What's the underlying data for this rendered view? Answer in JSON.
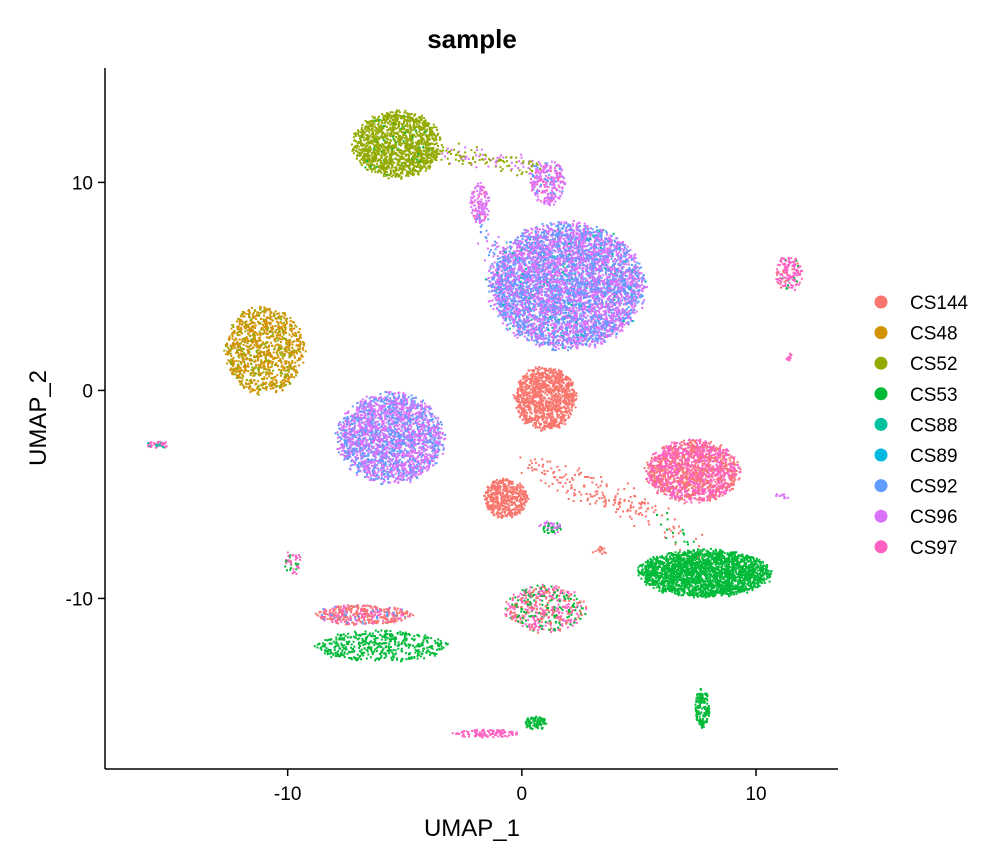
{
  "chart_data": {
    "type": "scatter",
    "title": "sample",
    "xlabel": "UMAP_1",
    "ylabel": "UMAP_2",
    "xlim": [
      -17.8,
      13.5
    ],
    "ylim": [
      -18.2,
      15.5
    ],
    "x_ticks": [
      -10,
      0,
      10
    ],
    "y_ticks": [
      -10,
      0,
      10
    ],
    "x_tick_labels": [
      "-10",
      "0",
      "10"
    ],
    "y_tick_labels": [
      "-10",
      "0",
      "10"
    ],
    "grid": false,
    "legend_position": "right",
    "series": [
      {
        "name": "CS144",
        "color": "#F8766D"
      },
      {
        "name": "CS48",
        "color": "#D39200"
      },
      {
        "name": "CS52",
        "color": "#93AA00"
      },
      {
        "name": "CS53",
        "color": "#00BA38"
      },
      {
        "name": "CS88",
        "color": "#00C19F"
      },
      {
        "name": "CS89",
        "color": "#00B9E3"
      },
      {
        "name": "CS92",
        "color": "#619CFF"
      },
      {
        "name": "CS96",
        "color": "#DB72FB"
      },
      {
        "name": "CS97",
        "color": "#FF61C3"
      }
    ],
    "clusters": [
      {
        "x": -5.3,
        "y": 11.8,
        "rx": 2.0,
        "ry": 1.7,
        "n": 1500,
        "mix": {
          "CS52": 0.97,
          "CS53": 0.03
        }
      },
      {
        "x": -11.0,
        "y": 1.9,
        "rx": 1.8,
        "ry": 2.2,
        "n": 1100,
        "mix": {
          "CS48": 0.75,
          "CS52": 0.25
        }
      },
      {
        "x": -5.6,
        "y": -2.3,
        "rx": 2.4,
        "ry": 2.3,
        "n": 2400,
        "mix": {
          "CS96": 0.6,
          "CS92": 0.4
        }
      },
      {
        "x": 1.9,
        "y": 5.0,
        "rx": 3.5,
        "ry": 3.2,
        "n": 5800,
        "mix": {
          "CS96": 0.55,
          "CS92": 0.42,
          "CS88": 0.03
        }
      },
      {
        "x": 1.1,
        "y": 10.0,
        "rx": 0.8,
        "ry": 1.2,
        "n": 260,
        "mix": {
          "CS96": 0.6,
          "CS97": 0.25,
          "CS92": 0.15
        }
      },
      {
        "x": -1.8,
        "y": 9.0,
        "rx": 0.45,
        "ry": 1.0,
        "n": 130,
        "mix": {
          "CS96": 0.7,
          "CS97": 0.3
        }
      },
      {
        "x": 1.0,
        "y": -0.4,
        "rx": 1.4,
        "ry": 1.6,
        "n": 1100,
        "mix": {
          "CS144": 1.0
        }
      },
      {
        "x": -0.7,
        "y": -5.2,
        "rx": 1.0,
        "ry": 1.0,
        "n": 500,
        "mix": {
          "CS144": 1.0
        }
      },
      {
        "x": 7.3,
        "y": -3.9,
        "rx": 2.1,
        "ry": 1.6,
        "n": 1700,
        "mix": {
          "CS97": 0.6,
          "CS144": 0.4
        }
      },
      {
        "x": 7.8,
        "y": -8.8,
        "rx": 3.0,
        "ry": 1.2,
        "n": 2400,
        "mix": {
          "CS53": 1.0
        }
      },
      {
        "x": 7.7,
        "y": -15.3,
        "rx": 0.35,
        "ry": 1.0,
        "n": 150,
        "mix": {
          "CS53": 1.0
        }
      },
      {
        "x": 0.6,
        "y": -16.0,
        "rx": 0.5,
        "ry": 0.35,
        "n": 90,
        "mix": {
          "CS53": 1.0
        }
      },
      {
        "x": -1.5,
        "y": -16.5,
        "rx": 1.5,
        "ry": 0.2,
        "n": 110,
        "mix": {
          "CS97": 1.0
        }
      },
      {
        "x": 11.4,
        "y": 5.6,
        "rx": 0.6,
        "ry": 0.9,
        "n": 150,
        "mix": {
          "CS97": 0.8,
          "CS53": 0.1,
          "CS144": 0.1
        }
      },
      {
        "x": -15.5,
        "y": -2.6,
        "rx": 0.6,
        "ry": 0.18,
        "n": 45,
        "mix": {
          "CS97": 0.6,
          "CS88": 0.4
        }
      },
      {
        "x": -9.8,
        "y": -8.3,
        "rx": 0.4,
        "ry": 0.6,
        "n": 45,
        "mix": {
          "CS97": 0.6,
          "CS53": 0.4
        }
      },
      {
        "x": -6.8,
        "y": -10.8,
        "rx": 2.2,
        "ry": 0.5,
        "n": 420,
        "mix": {
          "CS144": 0.6,
          "CS97": 0.3,
          "CS92": 0.1
        }
      },
      {
        "x": -6.0,
        "y": -12.3,
        "rx": 3.0,
        "ry": 0.8,
        "n": 480,
        "mix": {
          "CS53": 1.0
        }
      },
      {
        "x": 1.0,
        "y": -10.5,
        "rx": 1.8,
        "ry": 1.2,
        "n": 520,
        "mix": {
          "CS97": 0.4,
          "CS53": 0.3,
          "CS144": 0.3
        }
      },
      {
        "x": 1.2,
        "y": -6.6,
        "rx": 0.5,
        "ry": 0.35,
        "n": 60,
        "mix": {
          "CS96": 0.5,
          "CS53": 0.5
        }
      },
      {
        "x": 3.3,
        "y": -7.7,
        "rx": 0.35,
        "ry": 0.2,
        "n": 15,
        "mix": {
          "CS144": 1.0
        }
      },
      {
        "x": 11.1,
        "y": -5.1,
        "rx": 0.35,
        "ry": 0.15,
        "n": 12,
        "mix": {
          "CS96": 1.0
        }
      },
      {
        "x": 11.4,
        "y": 1.6,
        "rx": 0.2,
        "ry": 0.2,
        "n": 10,
        "mix": {
          "CS97": 1.0
        }
      }
    ],
    "bridges": [
      {
        "from": [
          -3.2,
          11.3
        ],
        "to": [
          0.8,
          10.8
        ],
        "n": 130,
        "spread": 0.22,
        "mix": {
          "CS52": 0.7,
          "CS96": 0.3
        }
      },
      {
        "from": [
          0.3,
          -3.5
        ],
        "to": [
          5.5,
          -6.0
        ],
        "n": 180,
        "spread": 0.35,
        "mix": {
          "CS144": 1.0
        }
      },
      {
        "from": [
          -1.8,
          8.5
        ],
        "to": [
          -0.6,
          4.5
        ],
        "n": 60,
        "spread": 0.2,
        "mix": {
          "CS96": 0.6,
          "CS92": 0.4
        }
      },
      {
        "from": [
          6.0,
          -6.0
        ],
        "to": [
          7.5,
          -8.0
        ],
        "n": 40,
        "spread": 0.3,
        "mix": {
          "CS53": 0.6,
          "CS144": 0.4
        }
      }
    ]
  }
}
